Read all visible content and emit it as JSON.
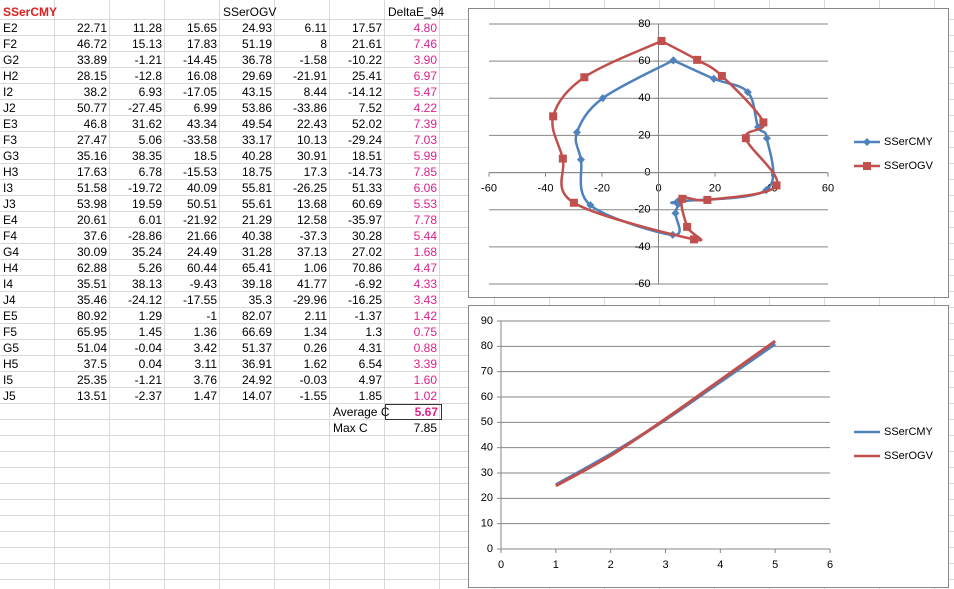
{
  "sheet": {
    "header": {
      "group1": "SSerCMY",
      "group2": "SSerOGV",
      "delta": "DeltaE_94"
    },
    "rows": [
      [
        "E2",
        "22.71",
        "11.28",
        "15.65",
        "24.93",
        "6.11",
        "17.57",
        "4.80"
      ],
      [
        "F2",
        "46.72",
        "15.13",
        "17.83",
        "51.19",
        "8",
        "21.61",
        "7.46"
      ],
      [
        "G2",
        "33.89",
        "-1.21",
        "-14.45",
        "36.78",
        "-1.58",
        "-10.22",
        "3.90"
      ],
      [
        "H2",
        "28.15",
        "-12.8",
        "16.08",
        "29.69",
        "-21.91",
        "25.41",
        "6.97"
      ],
      [
        "I2",
        "38.2",
        "6.93",
        "-17.05",
        "43.15",
        "8.44",
        "-14.12",
        "5.47"
      ],
      [
        "J2",
        "50.77",
        "-27.45",
        "6.99",
        "53.86",
        "-33.86",
        "7.52",
        "4.22"
      ],
      [
        "E3",
        "46.8",
        "31.62",
        "43.34",
        "49.54",
        "22.43",
        "52.02",
        "7.39"
      ],
      [
        "F3",
        "27.47",
        "5.06",
        "-33.58",
        "33.17",
        "10.13",
        "-29.24",
        "7.03"
      ],
      [
        "G3",
        "35.16",
        "38.35",
        "18.5",
        "40.28",
        "30.91",
        "18.51",
        "5.99"
      ],
      [
        "H3",
        "17.63",
        "6.78",
        "-15.53",
        "18.75",
        "17.3",
        "-14.73",
        "7.85"
      ],
      [
        "I3",
        "51.58",
        "-19.72",
        "40.09",
        "55.81",
        "-26.25",
        "51.33",
        "6.06"
      ],
      [
        "J3",
        "53.98",
        "19.59",
        "50.51",
        "55.61",
        "13.68",
        "60.69",
        "5.53"
      ],
      [
        "E4",
        "20.61",
        "6.01",
        "-21.92",
        "21.29",
        "12.58",
        "-35.97",
        "7.78"
      ],
      [
        "F4",
        "37.6",
        "-28.86",
        "21.66",
        "40.38",
        "-37.3",
        "30.28",
        "5.44"
      ],
      [
        "G4",
        "30.09",
        "35.24",
        "24.49",
        "31.28",
        "37.13",
        "27.02",
        "1.68"
      ],
      [
        "H4",
        "62.88",
        "5.26",
        "60.44",
        "65.41",
        "1.06",
        "70.86",
        "4.47"
      ],
      [
        "I4",
        "35.51",
        "38.13",
        "-9.43",
        "39.18",
        "41.77",
        "-6.92",
        "4.33"
      ],
      [
        "J4",
        "35.46",
        "-24.12",
        "-17.55",
        "35.3",
        "-29.96",
        "-16.25",
        "3.43"
      ],
      [
        "E5",
        "80.92",
        "1.29",
        "-1",
        "82.07",
        "2.11",
        "-1.37",
        "1.42"
      ],
      [
        "F5",
        "65.95",
        "1.45",
        "1.36",
        "66.69",
        "1.34",
        "1.3",
        "0.75"
      ],
      [
        "G5",
        "51.04",
        "-0.04",
        "3.42",
        "51.37",
        "0.26",
        "4.31",
        "0.88"
      ],
      [
        "H5",
        "37.5",
        "0.04",
        "3.11",
        "36.91",
        "1.62",
        "6.54",
        "3.39"
      ],
      [
        "I5",
        "25.35",
        "-1.21",
        "3.76",
        "24.92",
        "-0.03",
        "4.97",
        "1.60"
      ],
      [
        "J5",
        "13.51",
        "-2.37",
        "1.47",
        "14.07",
        "-1.55",
        "1.85",
        "1.02"
      ]
    ],
    "summary": [
      {
        "label": "Average C",
        "value": "5.67"
      },
      {
        "label": "Max C",
        "value": "7.85"
      }
    ]
  },
  "chart_data": [
    {
      "type": "scatter",
      "smooth": true,
      "grid": true,
      "legend": "right",
      "xlim": [
        -60,
        60
      ],
      "xticks": [
        -60,
        -40,
        -20,
        0,
        20,
        40,
        60
      ],
      "ylim": [
        -60,
        80
      ],
      "yticks": [
        -60,
        -40,
        -20,
        0,
        20,
        40,
        60,
        80
      ],
      "series": [
        {
          "name": "SSerCMY",
          "color": "#4f81bd",
          "marker": "diamond",
          "x": [
            5.26,
            19.59,
            31.62,
            35.24,
            38.35,
            38.13,
            6.78,
            6.93,
            6.01,
            5.06,
            -24.12,
            -27.45,
            -28.86,
            -19.72,
            5.26
          ],
          "values": [
            60.44,
            50.51,
            43.34,
            24.49,
            18.5,
            -9.43,
            -15.53,
            -17.05,
            -21.92,
            -33.58,
            -17.55,
            6.99,
            21.66,
            40.09,
            60.44
          ]
        },
        {
          "name": "SSerOGV",
          "color": "#c0504d",
          "marker": "square",
          "x": [
            1.06,
            13.68,
            22.43,
            37.13,
            30.91,
            41.77,
            17.3,
            8.44,
            10.13,
            12.58,
            -29.96,
            -33.86,
            -37.3,
            -26.25,
            1.06
          ],
          "values": [
            70.86,
            60.69,
            52.02,
            27.02,
            18.51,
            -6.92,
            -14.73,
            -14.12,
            -29.24,
            -35.97,
            -16.25,
            7.52,
            30.28,
            51.33,
            70.86
          ]
        }
      ]
    },
    {
      "type": "line",
      "smooth": true,
      "grid": true,
      "legend": "right",
      "x": [
        1,
        2,
        3,
        4,
        5
      ],
      "xlim": [
        0,
        6
      ],
      "xticks": [
        0,
        1,
        2,
        3,
        4,
        5,
        6
      ],
      "ylim": [
        0,
        90
      ],
      "yticks": [
        0,
        10,
        20,
        30,
        40,
        50,
        60,
        70,
        80,
        90
      ],
      "series": [
        {
          "name": "SSerCMY",
          "color": "#4f81bd",
          "values": [
            25.35,
            37.5,
            51.04,
            65.95,
            80.92
          ]
        },
        {
          "name": "SSerOGV",
          "color": "#c0504d",
          "values": [
            24.92,
            36.91,
            51.37,
            66.69,
            82.07
          ]
        }
      ]
    }
  ]
}
